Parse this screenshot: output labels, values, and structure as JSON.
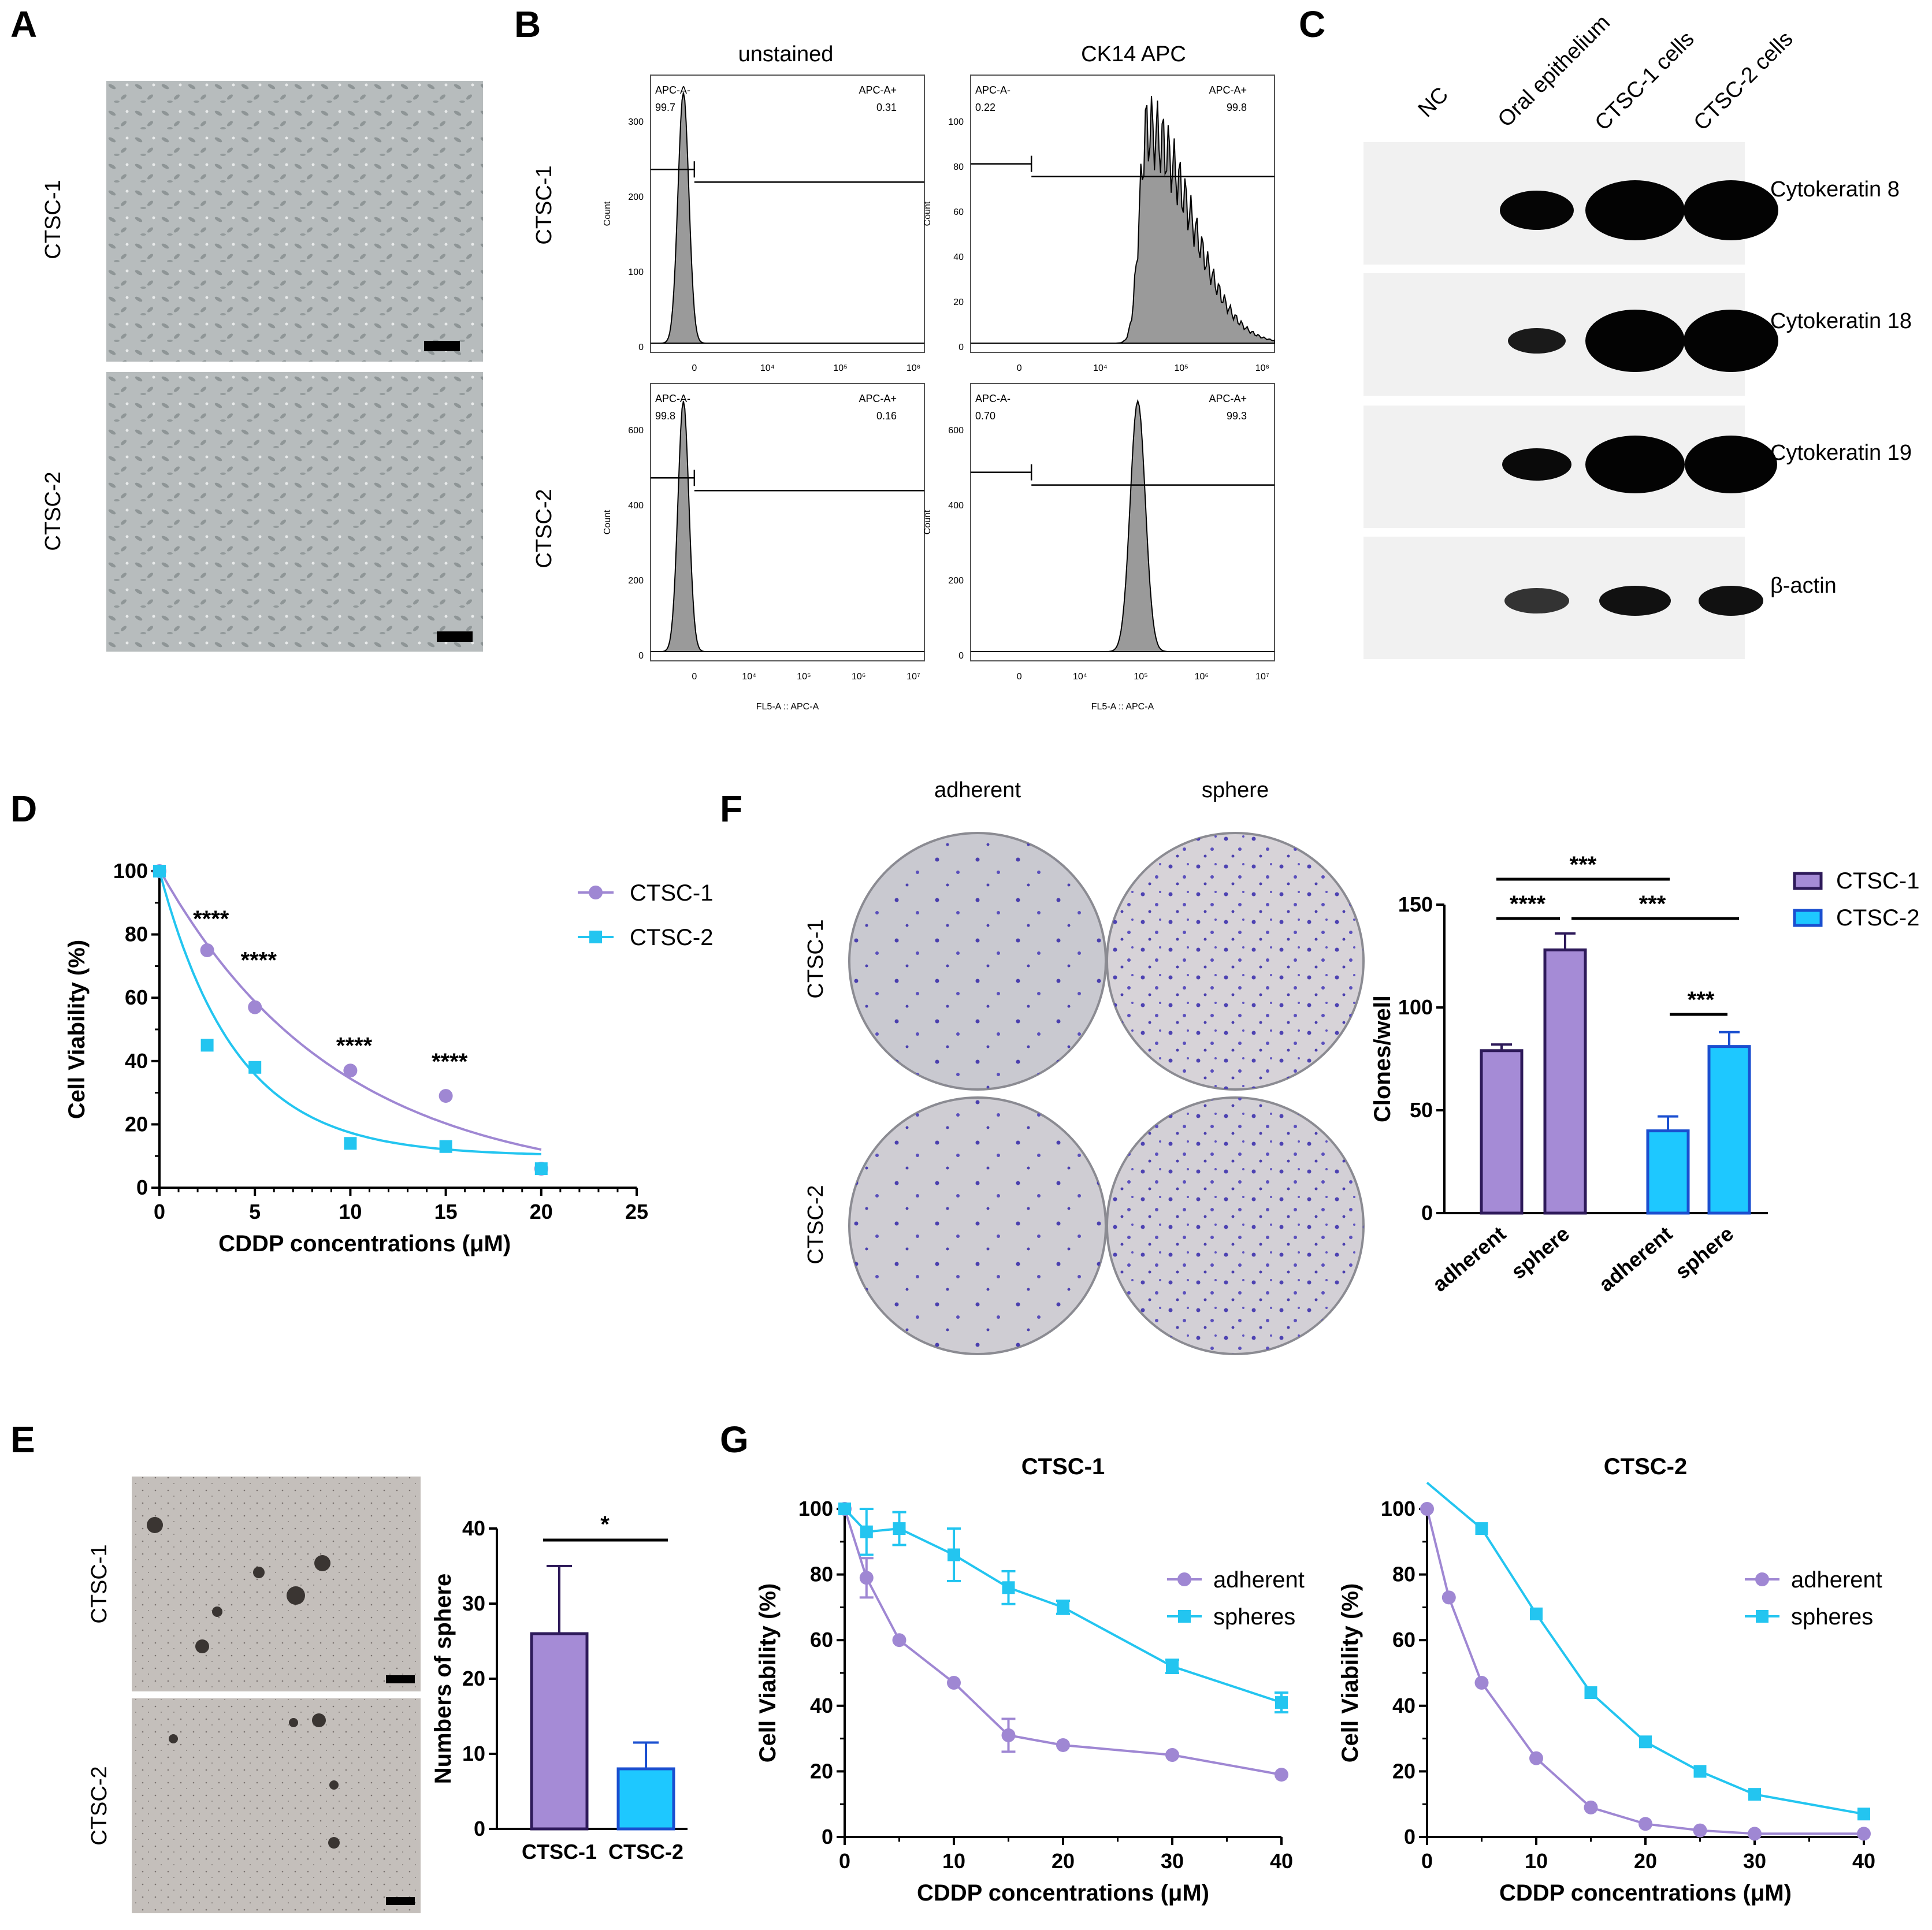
{
  "colors": {
    "purple": "#a58bd6",
    "purple_dark": "#2e1a5a",
    "blue": "#1ec8ff",
    "blue_dark": "#1a4fd0",
    "curve_purple": "#9f87d3",
    "curve_blue": "#23c5f0"
  },
  "panels": {
    "A": {
      "label": "A",
      "rows": [
        "CTSC-1",
        "CTSC-2"
      ]
    },
    "B": {
      "label": "B",
      "cols": [
        "unstained",
        "CK14 APC"
      ],
      "rows": [
        "CTSC-1",
        "CTSC-2"
      ],
      "ylabel": "Count",
      "xlabel": "FL5-A :: APC-A",
      "gates": [
        {
          "neg_label": "APC-A-",
          "neg": "99.7",
          "pos_label": "APC-A+",
          "pos": "0.31",
          "yticks": [
            "300",
            "200",
            "100",
            "0"
          ]
        },
        {
          "neg_label": "APC-A-",
          "neg": "0.22",
          "pos_label": "APC-A+",
          "pos": "99.8",
          "yticks": [
            "100",
            "80",
            "60",
            "40",
            "20",
            "0"
          ]
        },
        {
          "neg_label": "APC-A-",
          "neg": "99.8",
          "pos_label": "APC-A+",
          "pos": "0.16",
          "yticks": [
            "600",
            "400",
            "200",
            "0"
          ]
        },
        {
          "neg_label": "APC-A-",
          "neg": "0.70",
          "pos_label": "APC-A+",
          "pos": "99.3",
          "yticks": [
            "600",
            "400",
            "200",
            "0"
          ]
        }
      ],
      "xticks": [
        "0",
        "10⁴",
        "10⁵",
        "10⁶"
      ],
      "xticks_b": [
        "0",
        "10⁴",
        "10⁵",
        "10⁶",
        "10⁷"
      ]
    },
    "C": {
      "label": "C",
      "lanes": [
        "NC",
        "Oral epithelium",
        "CTSC-1 cells",
        "CTSC-2 cells"
      ],
      "bands": [
        "Cytokeratin 8",
        "Cytokeratin 18",
        "Cytokeratin 19",
        "β-actin"
      ]
    },
    "D": {
      "label": "D",
      "chart_data": {
        "type": "scatter",
        "xlabel": "CDDP concentrations (μM)",
        "ylabel": "Cell Viability (%)",
        "xlim": [
          0,
          25
        ],
        "ylim": [
          0,
          100
        ],
        "xticks": [
          "0",
          "5",
          "10",
          "15",
          "20",
          "25"
        ],
        "yticks": [
          "0",
          "20",
          "40",
          "60",
          "80",
          "100"
        ],
        "series": [
          {
            "name": "CTSC-1",
            "x": [
              0,
              2.5,
              5,
              10,
              15,
              20
            ],
            "y": [
              100,
              75,
              57,
              37,
              29,
              6
            ]
          },
          {
            "name": "CTSC-2",
            "x": [
              0,
              2.5,
              5,
              10,
              15,
              20
            ],
            "y": [
              100,
              45,
              38,
              14,
              13,
              6
            ]
          }
        ],
        "annotations": [
          "****",
          "****",
          "****",
          "****"
        ]
      }
    },
    "E": {
      "label": "E",
      "rows": [
        "CTSC-1",
        "CTSC-2"
      ],
      "chart_data": {
        "type": "bar",
        "categories": [
          "CTSC-1",
          "CTSC-2"
        ],
        "values": [
          26,
          8
        ],
        "errors": [
          9,
          3.5
        ],
        "ylabel": "Numbers of sphere",
        "ylim": [
          0,
          40
        ],
        "yticks": [
          "0",
          "10",
          "20",
          "30",
          "40"
        ],
        "annotation": "*"
      }
    },
    "F": {
      "label": "F",
      "cols": [
        "adherent",
        "sphere"
      ],
      "rows": [
        "CTSC-1",
        "CTSC-2"
      ],
      "chart_data": {
        "type": "bar",
        "categories": [
          "adherent",
          "sphere",
          "adherent",
          "sphere"
        ],
        "values": [
          79,
          128,
          40,
          81
        ],
        "errors": [
          3,
          8,
          7,
          7
        ],
        "series_of_bar": [
          "CTSC-1",
          "CTSC-1",
          "CTSC-2",
          "CTSC-2"
        ],
        "legend": [
          "CTSC-1",
          "CTSC-2"
        ],
        "ylabel": "Clones/well",
        "ylim": [
          0,
          150
        ],
        "yticks": [
          "0",
          "50",
          "100",
          "150"
        ],
        "annotations": [
          "***",
          "****",
          "***",
          "***"
        ]
      }
    },
    "G": {
      "label": "G",
      "chart_data": [
        {
          "type": "line",
          "title": "CTSC-1",
          "xlabel": "CDDP concentrations (μM)",
          "ylabel": "Cell Viability (%)",
          "xlim": [
            0,
            40
          ],
          "ylim": [
            0,
            100
          ],
          "xticks": [
            "0",
            "10",
            "20",
            "30",
            "40"
          ],
          "yticks": [
            "0",
            "20",
            "40",
            "60",
            "80",
            "100"
          ],
          "series": [
            {
              "name": "adherent",
              "x": [
                0,
                2,
                5,
                10,
                15,
                20,
                30,
                40
              ],
              "y": [
                100,
                79,
                60,
                47,
                31,
                28,
                25,
                19
              ],
              "err": [
                0,
                6,
                0,
                0,
                5,
                0,
                0,
                0
              ]
            },
            {
              "name": "spheres",
              "x": [
                0,
                2,
                5,
                10,
                15,
                20,
                30,
                40
              ],
              "y": [
                100,
                93,
                94,
                86,
                76,
                70,
                52,
                41
              ],
              "err": [
                0,
                7,
                5,
                8,
                5,
                2,
                2,
                3
              ]
            }
          ]
        },
        {
          "type": "line",
          "title": "CTSC-2",
          "xlabel": "CDDP concentrations (μM)",
          "ylabel": "Cell Viability (%)",
          "xlim": [
            0,
            40
          ],
          "ylim": [
            0,
            100
          ],
          "xticks": [
            "0",
            "10",
            "20",
            "30",
            "40"
          ],
          "yticks": [
            "0",
            "20",
            "40",
            "60",
            "80",
            "100"
          ],
          "series": [
            {
              "name": "adherent",
              "x": [
                0,
                2,
                5,
                10,
                15,
                20,
                25,
                30,
                40
              ],
              "y": [
                100,
                73,
                47,
                24,
                9,
                4,
                2,
                1,
                1
              ],
              "err": [
                0,
                0,
                0,
                0,
                0,
                0,
                0,
                0,
                0
              ]
            },
            {
              "name": "spheres",
              "x": [
                0,
                5,
                10,
                15,
                20,
                25,
                30,
                40
              ],
              "y": [
                108,
                94,
                68,
                44,
                29,
                20,
                13,
                7
              ],
              "err": [
                0,
                0,
                0,
                0,
                0,
                0,
                0,
                0
              ]
            }
          ]
        }
      ]
    }
  }
}
